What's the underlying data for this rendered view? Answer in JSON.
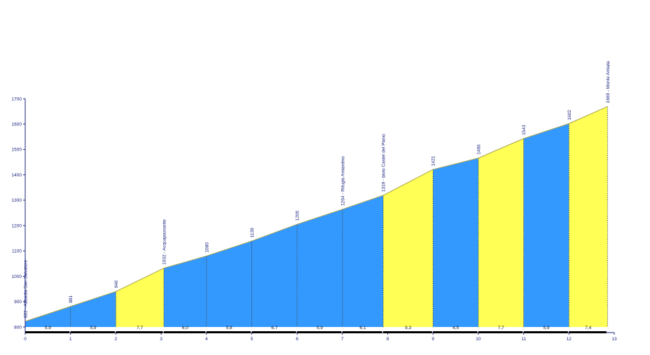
{
  "chart_data": {
    "type": "area",
    "title": "",
    "xlabel": "",
    "ylabel": "",
    "xlim": [
      0,
      13
    ],
    "ylim": [
      780,
      1700
    ],
    "x_ticks": [
      0,
      1,
      2,
      3,
      4,
      5,
      6,
      7,
      8,
      9,
      10,
      11,
      12,
      13
    ],
    "y_ticks": [
      800,
      900,
      1000,
      1100,
      1200,
      1300,
      1400,
      1500,
      1600,
      1700
    ],
    "grid": false,
    "points": [
      {
        "x": 0,
        "y": 822,
        "label": "822 - Abbadia San Salvatore"
      },
      {
        "x": 1,
        "y": 881,
        "label": "881"
      },
      {
        "x": 2,
        "y": 940,
        "label": "940"
      },
      {
        "x": 3.06,
        "y": 1032,
        "label": "1032 - Acquapassante"
      },
      {
        "x": 4,
        "y": 1080,
        "label": "1080"
      },
      {
        "x": 5,
        "y": 1139,
        "label": "1139"
      },
      {
        "x": 6,
        "y": 1205,
        "label": "1205"
      },
      {
        "x": 7,
        "y": 1264,
        "label": "1264 - Rifugio Amiantino"
      },
      {
        "x": 7.9,
        "y": 1319,
        "label": "1319 - bivio Castel del Piano"
      },
      {
        "x": 9,
        "y": 1421,
        "label": "1421"
      },
      {
        "x": 10,
        "y": 1466,
        "label": "1466"
      },
      {
        "x": 11,
        "y": 1543,
        "label": "1543"
      },
      {
        "x": 12,
        "y": 1602,
        "label": "1602"
      },
      {
        "x": 12.85,
        "y": 1669,
        "label": "1669 - Monte Amiata"
      }
    ],
    "segments": [
      {
        "grade": "5,9",
        "fill": "blue"
      },
      {
        "grade": "5,9",
        "fill": "blue"
      },
      {
        "grade": "7,7",
        "fill": "yellow"
      },
      {
        "grade": "6,0",
        "fill": "blue"
      },
      {
        "grade": "5,8",
        "fill": "blue"
      },
      {
        "grade": "6,7",
        "fill": "blue"
      },
      {
        "grade": "5,9",
        "fill": "blue"
      },
      {
        "grade": "6,1",
        "fill": "blue"
      },
      {
        "grade": "9,3",
        "fill": "yellow"
      },
      {
        "grade": "4,5",
        "fill": "blue"
      },
      {
        "grade": "7,7",
        "fill": "yellow"
      },
      {
        "grade": "5,9",
        "fill": "blue"
      },
      {
        "grade": "7,4",
        "fill": "yellow"
      }
    ],
    "colors": {
      "blue": "#3399ff",
      "yellow": "#ffff55",
      "outline": "#a9a24a",
      "axis": "#1a237e",
      "segment_bar": "#000000"
    }
  }
}
